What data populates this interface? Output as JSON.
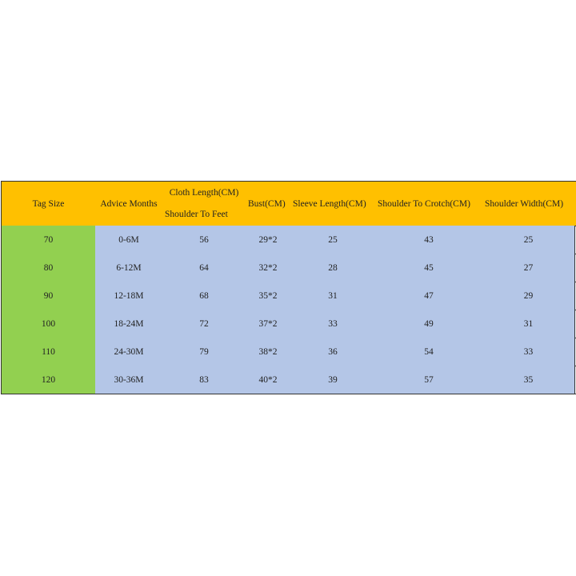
{
  "table": {
    "header": {
      "tag_size": "Tag Size",
      "advice_months": "Advice Months",
      "cloth_length": "Cloth Length(CM)",
      "cloth_length_sub": "Shoulder To Feet",
      "bust": "Bust(CM)",
      "sleeve_length": "Sleeve Length(CM)",
      "shoulder_to_crotch": "Shoulder To Crotch(CM)",
      "shoulder_width": "Shoulder Width(CM)"
    },
    "rows": [
      [
        "70",
        "0-6M",
        "56",
        "29*2",
        "25",
        "43",
        "25"
      ],
      [
        "80",
        "6-12M",
        "64",
        "32*2",
        "28",
        "45",
        "27"
      ],
      [
        "90",
        "12-18M",
        "68",
        "35*2",
        "31",
        "47",
        "29"
      ],
      [
        "100",
        "18-24M",
        "72",
        "37*2",
        "33",
        "49",
        "31"
      ],
      [
        "110",
        "24-30M",
        "79",
        "38*2",
        "36",
        "54",
        "33"
      ],
      [
        "120",
        "30-36M",
        "83",
        "40*2",
        "39",
        "57",
        "35"
      ]
    ]
  }
}
